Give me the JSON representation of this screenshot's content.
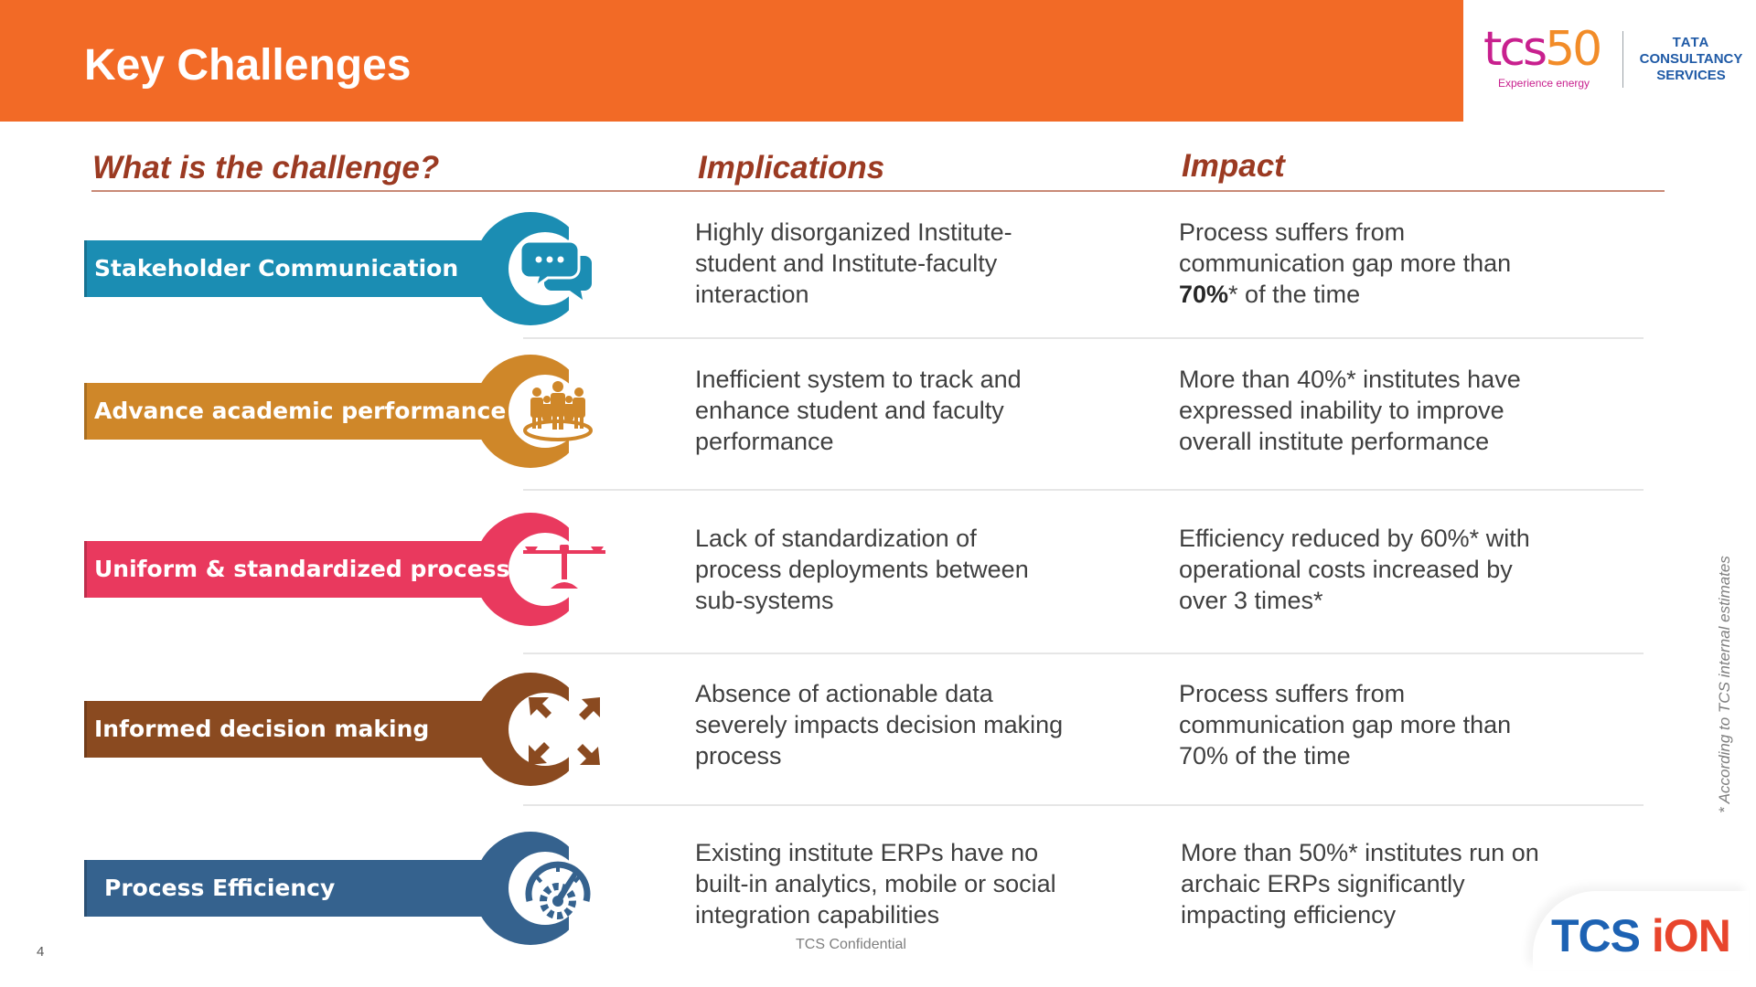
{
  "header": {
    "title": "Key Challenges"
  },
  "logos": {
    "tcs50_a": "tcs",
    "tcs50_b": "50",
    "tagline": "Experience energy",
    "tata_line1": "TATA",
    "tata_line2": "CONSULTANCY",
    "tata_line3": "SERVICES",
    "ion_a": "TCS ",
    "ion_b": "iON"
  },
  "columns": {
    "challenge": "What is the challenge?",
    "implications": "Implications",
    "impact": "Impact"
  },
  "rows": [
    {
      "label": "Stakeholder Communication",
      "color": "#1B8DB3",
      "icon": "chat-bubbles-icon",
      "implication": [
        "Highly disorganized Institute-",
        "student and Institute-faculty",
        "interaction"
      ],
      "impact_pre": [
        "Process suffers from",
        "communication gap more than"
      ],
      "impact_bold": "70%",
      "impact_post": "* of the time"
    },
    {
      "label": "Advance academic performance",
      "color": "#CF8729",
      "icon": "team-group-icon",
      "implication": [
        "Inefficient system to track and",
        "enhance student and faculty",
        "performance"
      ],
      "impact": [
        "More than 40%* institutes have",
        "expressed inability to improve",
        "overall institute performance"
      ]
    },
    {
      "label": "Uniform & standardized processes",
      "color": "#E9395E",
      "icon": "balance-scale-icon",
      "implication": [
        "Lack of standardization of",
        "process deployments between",
        "sub-systems"
      ],
      "impact": [
        "Efficiency reduced by 60%* with",
        "operational costs increased by",
        "over 3 times*"
      ]
    },
    {
      "label": "Informed decision making",
      "color": "#8A4A20",
      "icon": "diverging-arrows-icon",
      "implication": [
        "Absence of actionable data",
        "severely impacts decision making",
        "process"
      ],
      "impact": [
        "Process suffers from",
        "communication gap more than",
        "70% of the time"
      ]
    },
    {
      "label": "Process Efficiency",
      "color": "#35628E",
      "icon": "gauge-gear-icon",
      "implication": [
        "Existing institute ERPs have no",
        "built-in analytics, mobile or social",
        "integration capabilities"
      ],
      "impact": [
        "More than 50%* institutes run on",
        "archaic ERPs significantly",
        "impacting efficiency"
      ]
    }
  ],
  "footnote": "* According to TCS internal estimates",
  "footer": {
    "page_number": "4",
    "confidential": "TCS Confidential"
  }
}
